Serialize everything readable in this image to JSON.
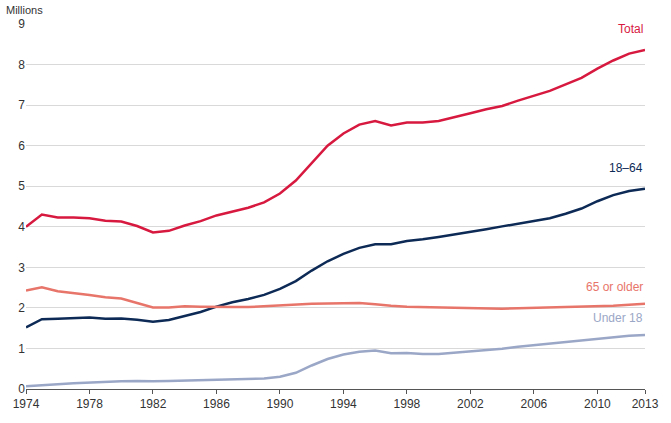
{
  "chart_data": {
    "type": "line",
    "y_label": "Millions",
    "x": [
      1974,
      1975,
      1976,
      1977,
      1978,
      1979,
      1980,
      1981,
      1982,
      1983,
      1984,
      1985,
      1986,
      1987,
      1988,
      1989,
      1990,
      1991,
      1992,
      1993,
      1994,
      1995,
      1996,
      1997,
      1998,
      1999,
      2000,
      2001,
      2002,
      2003,
      2004,
      2005,
      2006,
      2007,
      2008,
      2009,
      2010,
      2011,
      2012,
      2013
    ],
    "series": [
      {
        "name": "Total",
        "color": "#d7193f",
        "values": [
          4.0,
          4.3,
          4.23,
          4.23,
          4.21,
          4.15,
          4.13,
          4.02,
          3.86,
          3.9,
          4.03,
          4.14,
          4.28,
          4.38,
          4.47,
          4.6,
          4.82,
          5.14,
          5.58,
          6.0,
          6.3,
          6.52,
          6.61,
          6.5,
          6.57,
          6.57,
          6.61,
          6.7,
          6.8,
          6.9,
          6.98,
          7.11,
          7.23,
          7.35,
          7.51,
          7.67,
          7.9,
          8.1,
          8.27,
          8.36
        ]
      },
      {
        "name": "18–64",
        "color": "#0c2a55",
        "values": [
          1.52,
          1.72,
          1.73,
          1.75,
          1.76,
          1.73,
          1.74,
          1.71,
          1.66,
          1.7,
          1.8,
          1.9,
          2.03,
          2.14,
          2.22,
          2.32,
          2.47,
          2.66,
          2.92,
          3.15,
          3.33,
          3.48,
          3.57,
          3.57,
          3.65,
          3.69,
          3.75,
          3.81,
          3.87,
          3.94,
          4.01,
          4.07,
          4.14,
          4.21,
          4.32,
          4.45,
          4.63,
          4.78,
          4.88,
          4.94
        ]
      },
      {
        "name": "65 or older",
        "color": "#e8756a",
        "values": [
          2.43,
          2.51,
          2.41,
          2.37,
          2.32,
          2.26,
          2.23,
          2.12,
          2.01,
          2.01,
          2.04,
          2.03,
          2.02,
          2.02,
          2.02,
          2.04,
          2.06,
          2.09,
          2.1,
          2.11,
          2.12,
          2.12,
          2.09,
          2.05,
          2.03,
          2.02,
          2.01,
          2.0,
          2.0,
          1.99,
          1.98,
          1.99,
          2.0,
          2.01,
          2.02,
          2.02,
          2.03,
          2.05,
          2.08,
          2.1
        ]
      },
      {
        "name": "Under 18",
        "color": "#9ba7c6",
        "values": [
          0.07,
          0.1,
          0.12,
          0.14,
          0.16,
          0.18,
          0.19,
          0.2,
          0.19,
          0.2,
          0.21,
          0.22,
          0.23,
          0.24,
          0.25,
          0.26,
          0.3,
          0.4,
          0.58,
          0.74,
          0.85,
          0.92,
          0.95,
          0.88,
          0.89,
          0.86,
          0.86,
          0.89,
          0.92,
          0.96,
          0.99,
          1.04,
          1.08,
          1.12,
          1.15,
          1.2,
          1.24,
          1.27,
          1.31,
          1.33
        ]
      }
    ],
    "xlim": [
      1974,
      2013
    ],
    "xticks": [
      1974,
      1978,
      1982,
      1986,
      1990,
      1994,
      1998,
      2002,
      2006,
      2010,
      2013
    ],
    "ylim": [
      0,
      9
    ],
    "yticks": [
      0,
      1,
      2,
      3,
      4,
      5,
      6,
      7,
      8,
      9
    ],
    "grid": true,
    "legend": "none"
  }
}
